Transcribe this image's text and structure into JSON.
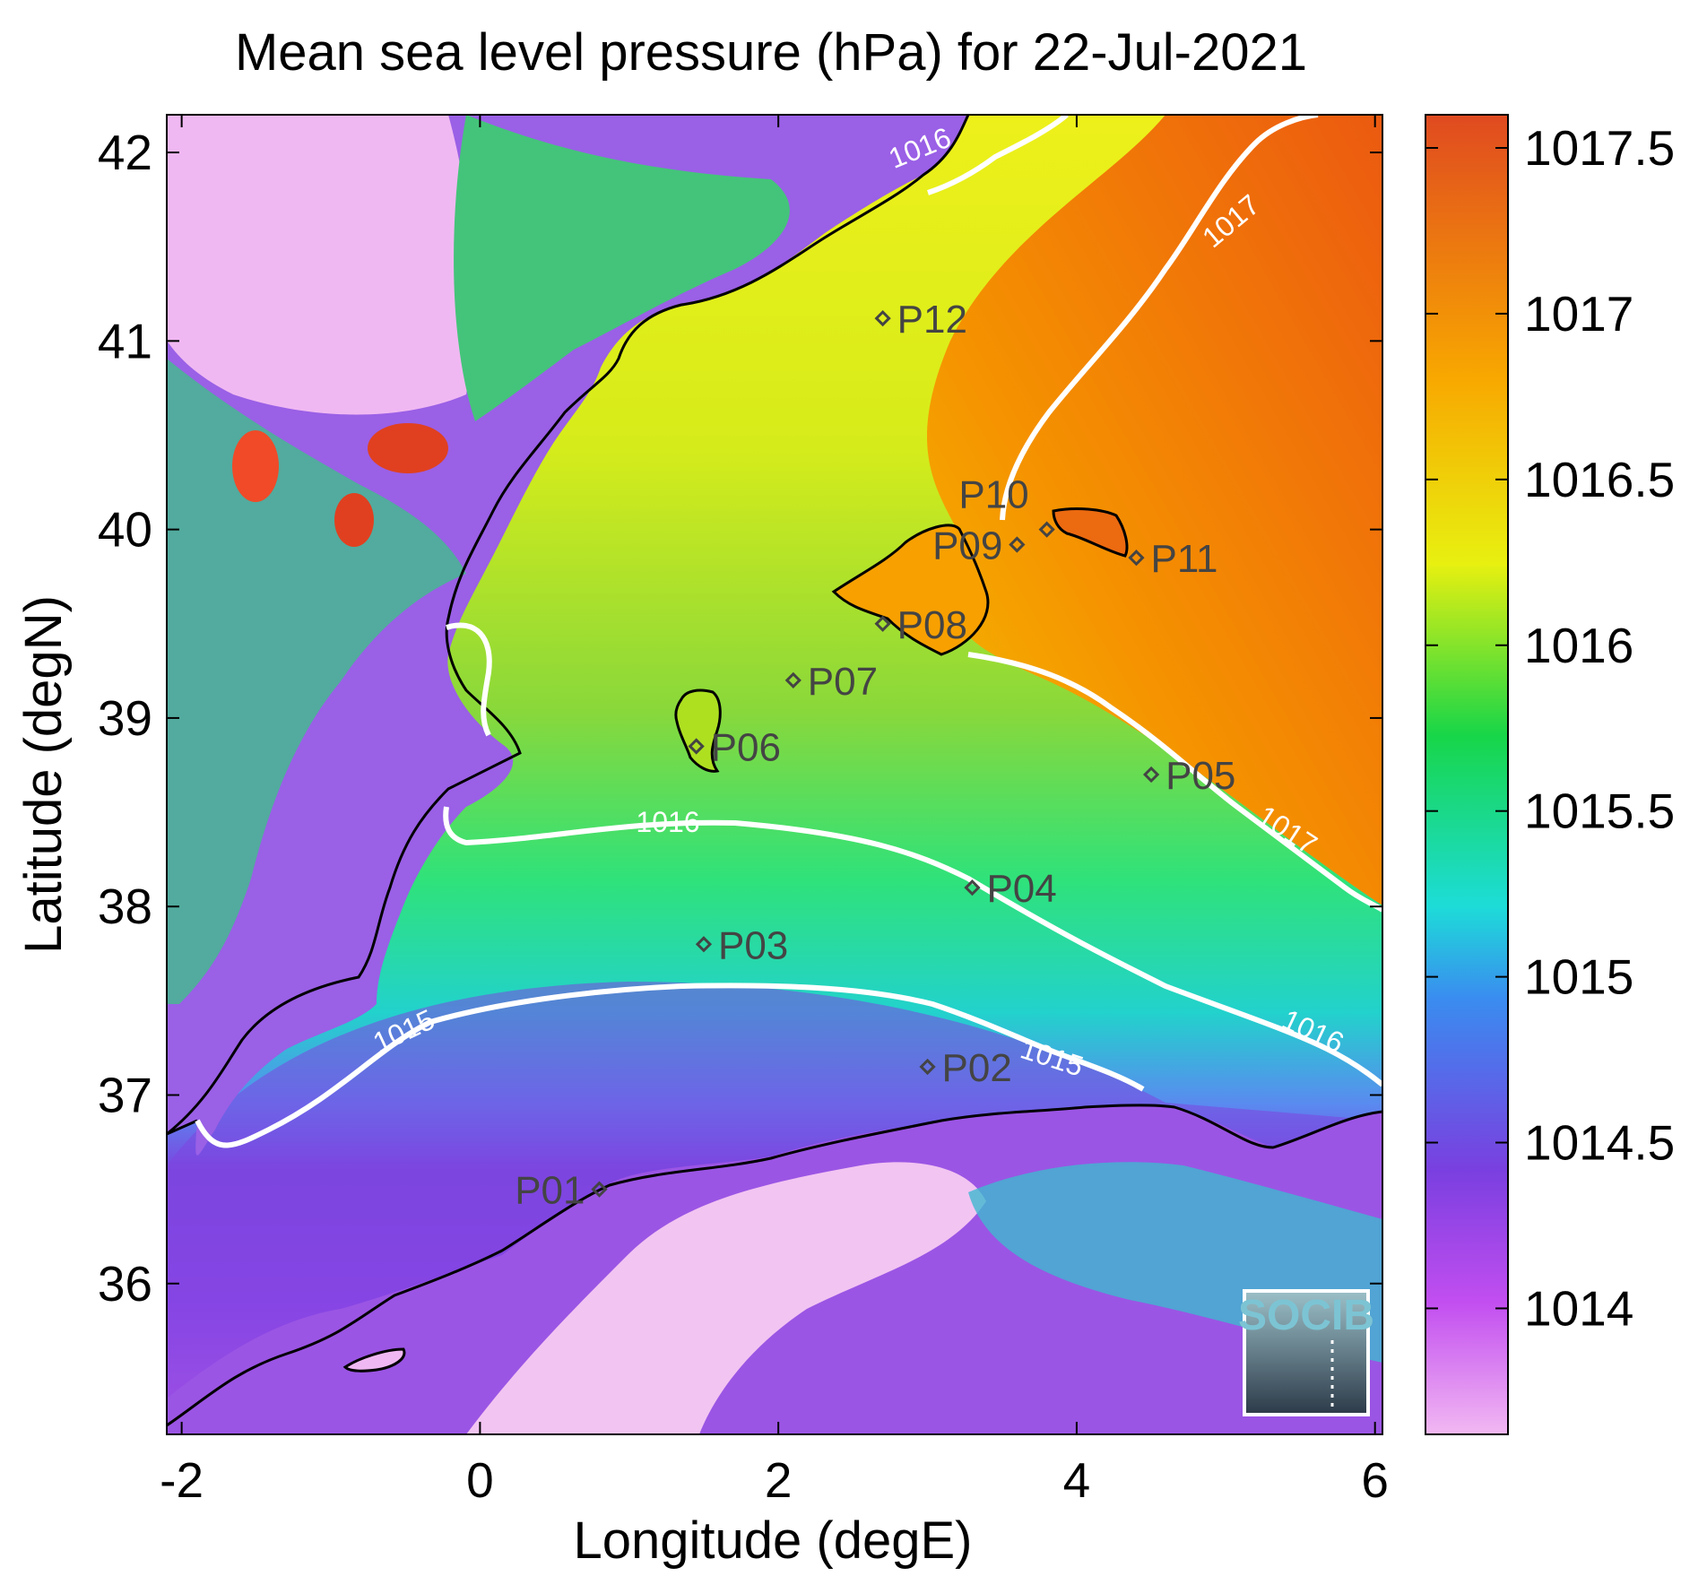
{
  "title": "Mean sea level pressure (hPa) for 22-Jul-2021",
  "xlabel": "Longitude (degE)",
  "ylabel": "Latitude (degN)",
  "xlim": [
    -2.1,
    6.05
  ],
  "ylim": [
    35.2,
    42.2
  ],
  "xticks": [
    "-2",
    "0",
    "2",
    "4",
    "6"
  ],
  "yticks": [
    "36",
    "37",
    "38",
    "39",
    "40",
    "41",
    "42"
  ],
  "colorbar": {
    "range": [
      1013.62,
      1017.6
    ],
    "ticks": [
      "1014",
      "1014.5",
      "1015",
      "1015.5",
      "1016",
      "1016.5",
      "1017",
      "1017.5"
    ]
  },
  "contour_labels": [
    "1015",
    "1015",
    "1016",
    "1016",
    "1016",
    "1017",
    "1017"
  ],
  "points": [
    {
      "name": "P01",
      "lon": 0.8,
      "lat": 36.5
    },
    {
      "name": "P02",
      "lon": 3.0,
      "lat": 37.15
    },
    {
      "name": "P03",
      "lon": 1.5,
      "lat": 37.8
    },
    {
      "name": "P04",
      "lon": 3.3,
      "lat": 38.1
    },
    {
      "name": "P05",
      "lon": 4.5,
      "lat": 38.7
    },
    {
      "name": "P06",
      "lon": 1.45,
      "lat": 38.85
    },
    {
      "name": "P07",
      "lon": 2.1,
      "lat": 39.2
    },
    {
      "name": "P08",
      "lon": 2.7,
      "lat": 39.5
    },
    {
      "name": "P09",
      "lon": 3.6,
      "lat": 39.92
    },
    {
      "name": "P10",
      "lon": 3.8,
      "lat": 40.0
    },
    {
      "name": "P11",
      "lon": 4.4,
      "lat": 39.85
    },
    {
      "name": "P12",
      "lon": 2.7,
      "lat": 41.12
    }
  ],
  "logo": {
    "text": "SOCIB"
  },
  "colors": {
    "contour": "#ffffff",
    "coastline": "#000000",
    "marker": "#444444"
  }
}
